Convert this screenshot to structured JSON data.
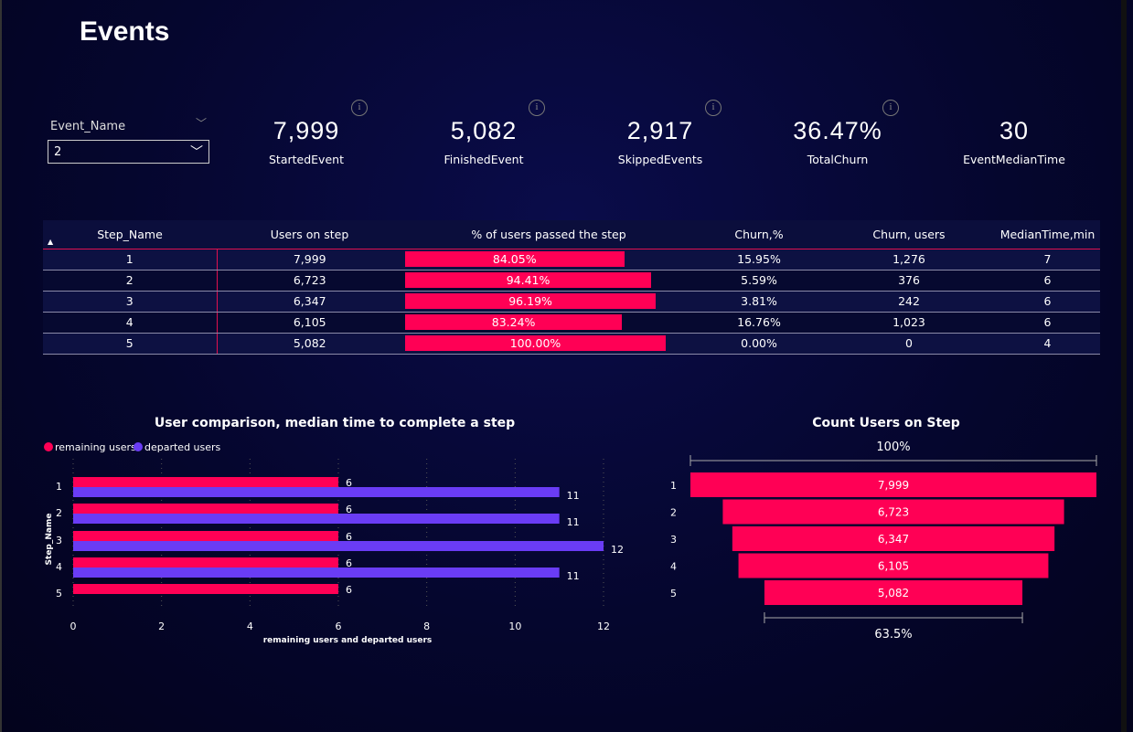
{
  "title": "Events",
  "slicer": {
    "label": "Event_Name",
    "value": "2"
  },
  "kpis": [
    {
      "value": "7,999",
      "label": "StartedEvent"
    },
    {
      "value": "5,082",
      "label": "FinishedEvent"
    },
    {
      "value": "2,917",
      "label": "SkippedEvents"
    },
    {
      "value": "36.47%",
      "label": "TotalChurn"
    },
    {
      "value": "30",
      "label": "EventMedianTime"
    }
  ],
  "table": {
    "headers": [
      "Step_Name",
      "Users on step",
      "% of users passed the step",
      "Churn,%",
      "Churn, users",
      "MedianTime,min"
    ],
    "rows": [
      [
        "1",
        "7,999",
        "84.05%",
        "15.95%",
        "1,276",
        "7"
      ],
      [
        "2",
        "6,723",
        "94.41%",
        "5.59%",
        "376",
        "6"
      ],
      [
        "3",
        "6,347",
        "96.19%",
        "3.81%",
        "242",
        "6"
      ],
      [
        "4",
        "6,105",
        "83.24%",
        "16.76%",
        "1,023",
        "6"
      ],
      [
        "5",
        "5,082",
        "100.00%",
        "0.00%",
        "0",
        "4"
      ]
    ],
    "pct_values": [
      84.05,
      94.41,
      96.19,
      83.24,
      100
    ]
  },
  "chart_data": [
    {
      "type": "bar",
      "orientation": "horizontal",
      "title": "User comparison, median time to complete a step",
      "xlabel": "remaining users and departed users",
      "ylabel": "Step_Name",
      "categories": [
        "1",
        "2",
        "3",
        "4",
        "5"
      ],
      "xlim": [
        0,
        12
      ],
      "xticks": [
        "0",
        "2",
        "4",
        "6",
        "8",
        "10",
        "12"
      ],
      "legend": "top-left",
      "colors": [
        "#ff0055",
        "#6a3cf5"
      ],
      "series": [
        {
          "name": "remaining users",
          "values": [
            6,
            6,
            6,
            6,
            6
          ]
        },
        {
          "name": "departed users",
          "values": [
            11,
            11,
            12,
            11,
            null
          ]
        }
      ]
    },
    {
      "type": "funnel",
      "title": "Count Users on Step",
      "categories": [
        "1",
        "2",
        "3",
        "4",
        "5"
      ],
      "values": [
        7999,
        6723,
        6347,
        6105,
        5082
      ],
      "labels": [
        "7,999",
        "6,723",
        "6,347",
        "6,105",
        "5,082"
      ],
      "top_label": "100%",
      "bottom_label": "63.5%",
      "color": "#ff0055"
    }
  ]
}
